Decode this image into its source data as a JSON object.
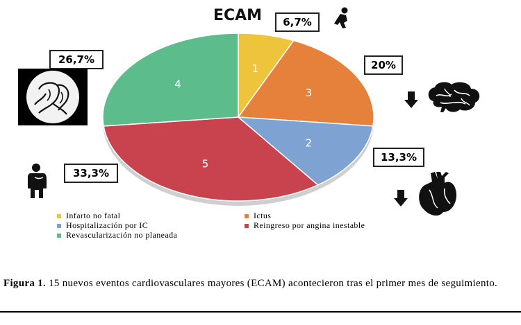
{
  "chart_data": {
    "type": "pie",
    "title": "ECAM",
    "slices": [
      {
        "number_label": "1",
        "value": 6.7,
        "percent_label": "6,7%",
        "legend": "Infarto no fatal",
        "color": "#eec43c"
      },
      {
        "number_label": "3",
        "value": 20.0,
        "percent_label": "20%",
        "legend": "Ictus",
        "color": "#e5813a"
      },
      {
        "number_label": "2",
        "value": 13.3,
        "percent_label": "13,3%",
        "legend": "Hospitalización por IC",
        "color": "#7ea3d3"
      },
      {
        "number_label": "5",
        "value": 33.3,
        "percent_label": "33,3%",
        "legend": "Reingreso por angina inestable",
        "color": "#c9434f"
      },
      {
        "number_label": "4",
        "value": 26.7,
        "percent_label": "26,7%",
        "legend": "Revascularización no planeada",
        "color": "#5cbc8c"
      }
    ],
    "legend_placement": "bottom",
    "icons": [
      "runner-icon",
      "brain-icon",
      "heart-icon",
      "coronary-angiogram-icon",
      "person-chest-pain-icon",
      "down-arrow-icon"
    ]
  },
  "caption": {
    "label": "Figura 1.",
    "text": " 15 nuevos eventos cardiovasculares mayores (ECAM) acontecieron tras el primer mes de seguimiento."
  }
}
